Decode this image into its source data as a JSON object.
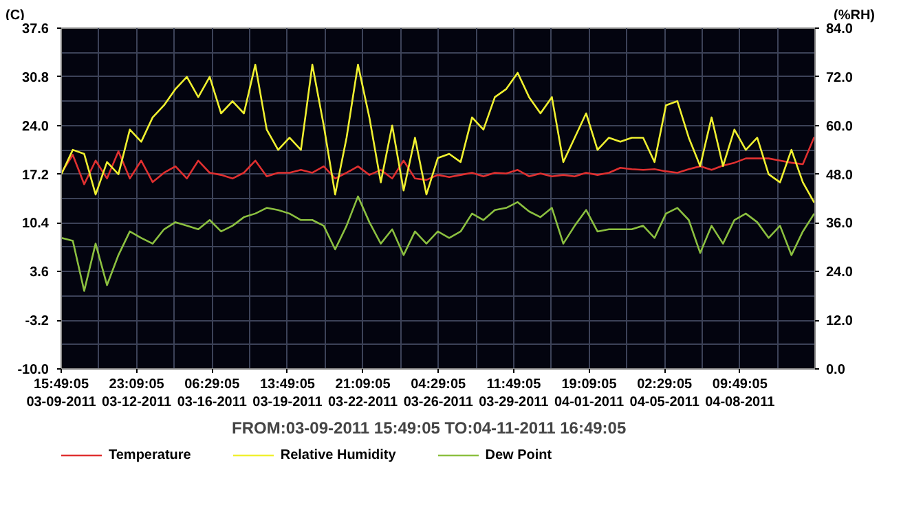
{
  "chart_data": {
    "type": "line",
    "ylabel": "(C)",
    "y2label": "(%RH)",
    "xlabel": "FROM:03-09-2011 15:49:05     TO:04-11-2011 16:49:05",
    "x": [
      "2011-03-09T16:00",
      "2011-03-10T04:00",
      "2011-03-10T16:00",
      "2011-03-11T04:00",
      "2011-03-11T16:00",
      "2011-03-12T04:00",
      "2011-03-12T16:00",
      "2011-03-13T04:00",
      "2011-03-13T16:00",
      "2011-03-14T04:00",
      "2011-03-14T16:00",
      "2011-03-15T04:00",
      "2011-03-15T16:00",
      "2011-03-16T04:00",
      "2011-03-16T16:00",
      "2011-03-17T04:00",
      "2011-03-17T16:00",
      "2011-03-18T04:00",
      "2011-03-18T16:00",
      "2011-03-19T04:00",
      "2011-03-19T16:00",
      "2011-03-20T04:00",
      "2011-03-20T16:00",
      "2011-03-21T04:00",
      "2011-03-21T16:00",
      "2011-03-22T04:00",
      "2011-03-22T16:00",
      "2011-03-23T04:00",
      "2011-03-23T16:00",
      "2011-03-24T04:00",
      "2011-03-24T16:00",
      "2011-03-25T04:00",
      "2011-03-25T16:00",
      "2011-03-26T04:00",
      "2011-03-26T16:00",
      "2011-03-27T04:00",
      "2011-03-27T16:00",
      "2011-03-28T04:00",
      "2011-03-28T16:00",
      "2011-03-29T04:00",
      "2011-03-29T16:00",
      "2011-03-30T04:00",
      "2011-03-30T16:00",
      "2011-03-31T04:00",
      "2011-03-31T16:00",
      "2011-04-01T04:00",
      "2011-04-01T16:00",
      "2011-04-02T04:00",
      "2011-04-02T16:00",
      "2011-04-03T04:00",
      "2011-04-03T16:00",
      "2011-04-04T04:00",
      "2011-04-04T16:00",
      "2011-04-05T04:00",
      "2011-04-05T16:00",
      "2011-04-06T04:00",
      "2011-04-06T16:00",
      "2011-04-07T04:00",
      "2011-04-07T16:00",
      "2011-04-08T04:00",
      "2011-04-08T16:00",
      "2011-04-09T04:00",
      "2011-04-09T16:00",
      "2011-04-10T04:00",
      "2011-04-10T16:00",
      "2011-04-11T04:00",
      "2011-04-11T16:00"
    ],
    "series": [
      {
        "name": "Temperature",
        "color": "#e03030",
        "values": [
          17.4,
          19.9,
          15.8,
          19.1,
          16.6,
          20.4,
          16.6,
          19.1,
          16.1,
          17.4,
          18.3,
          16.6,
          19.1,
          17.4,
          17.1,
          16.6,
          17.4,
          19.1,
          16.9,
          17.4,
          17.4,
          17.8,
          17.4,
          18.3,
          16.6,
          17.4,
          18.3,
          17.1,
          17.8,
          16.6,
          19.1,
          16.6,
          16.4,
          17.1,
          16.8,
          17.1,
          17.4,
          16.9,
          17.4,
          17.3,
          17.8,
          16.9,
          17.3,
          16.9,
          17.1,
          16.9,
          17.4,
          17.1,
          17.4,
          18.1,
          17.9,
          17.8,
          17.9,
          17.6,
          17.4,
          17.9,
          18.3,
          17.8,
          18.4,
          18.8,
          19.4,
          19.4,
          19.4,
          19.1,
          18.8,
          18.6,
          22.4
        ]
      },
      {
        "name": "Relative Humidity",
        "color": "#f0f030",
        "axis": "y2",
        "values": [
          48,
          54,
          53,
          43,
          51,
          48,
          59,
          56,
          62,
          65,
          69,
          72,
          67,
          72,
          63,
          66,
          63,
          75,
          59,
          54,
          57,
          54,
          75,
          60,
          43,
          57,
          75,
          62,
          46,
          60,
          44,
          57,
          43,
          52,
          53,
          51,
          62,
          59,
          67,
          69,
          73,
          67,
          63,
          67,
          51,
          57,
          63,
          54,
          57,
          56,
          57,
          57,
          51,
          65,
          66,
          57,
          50,
          62,
          50,
          59,
          54,
          57,
          48,
          46,
          54,
          46,
          41
        ]
      },
      {
        "name": "Dew Point",
        "color": "#8cc040",
        "values": [
          8.3,
          7.9,
          0.9,
          7.5,
          1.7,
          5.9,
          9.2,
          8.3,
          7.5,
          9.5,
          10.5,
          10.0,
          9.5,
          10.8,
          9.2,
          10.0,
          11.2,
          11.7,
          12.5,
          12.2,
          11.7,
          10.8,
          10.8,
          10.0,
          6.7,
          10.0,
          14.1,
          10.5,
          7.5,
          9.5,
          5.9,
          9.2,
          7.5,
          9.2,
          8.3,
          9.2,
          11.7,
          10.8,
          12.2,
          12.5,
          13.3,
          12.0,
          11.2,
          12.5,
          7.5,
          10.0,
          12.2,
          9.2,
          9.5,
          9.5,
          9.5,
          10.0,
          8.3,
          11.7,
          12.5,
          10.8,
          6.2,
          10.0,
          7.5,
          10.8,
          11.7,
          10.5,
          8.3,
          10.0,
          5.9,
          9.2,
          11.7
        ]
      }
    ],
    "xlim": [
      "2011-03-09T15:49",
      "2011-04-11T16:49"
    ],
    "xticks": [
      {
        "value": "2011-03-09T15:49",
        "label": "15:49:05\n03-09-2011"
      },
      {
        "value": "2011-03-12T23:09",
        "label": "23:09:05\n03-12-2011"
      },
      {
        "value": "2011-03-16T06:29",
        "label": "06:29:05\n03-16-2011"
      },
      {
        "value": "2011-03-19T13:49",
        "label": "13:49:05\n03-19-2011"
      },
      {
        "value": "2011-03-22T21:09",
        "label": "21:09:05\n03-22-2011"
      },
      {
        "value": "2011-03-26T04:29",
        "label": "04:29:05\n03-26-2011"
      },
      {
        "value": "2011-03-29T11:49",
        "label": "11:49:05\n03-29-2011"
      },
      {
        "value": "2011-04-01T19:09",
        "label": "19:09:05\n04-01-2011"
      },
      {
        "value": "2011-04-05T02:29",
        "label": "02:29:05\n04-05-2011"
      },
      {
        "value": "2011-04-08T09:49",
        "label": "09:49:05\n04-08-2011"
      }
    ],
    "ylim": [
      -10,
      37.6
    ],
    "yticks": [
      {
        "value": -10,
        "label": "-10.0"
      },
      -3.2,
      3.6,
      10.4,
      17.2,
      {
        "value": 24,
        "label": "24.0"
      },
      30.8,
      37.6
    ],
    "y2lim": [
      0,
      84
    ],
    "y2ticks": [
      {
        "value": 0,
        "label": "0.0"
      },
      {
        "value": 12,
        "label": "12.0"
      },
      {
        "value": 24,
        "label": "24.0"
      },
      {
        "value": 36,
        "label": "36.0"
      },
      {
        "value": 48,
        "label": "48.0"
      },
      {
        "value": 60,
        "label": "60.0"
      },
      {
        "value": 72,
        "label": "72.0"
      },
      {
        "value": 84,
        "label": "84.0"
      }
    ],
    "grid": true,
    "legend": "bottom",
    "marker": "none",
    "line_style": "solid"
  }
}
